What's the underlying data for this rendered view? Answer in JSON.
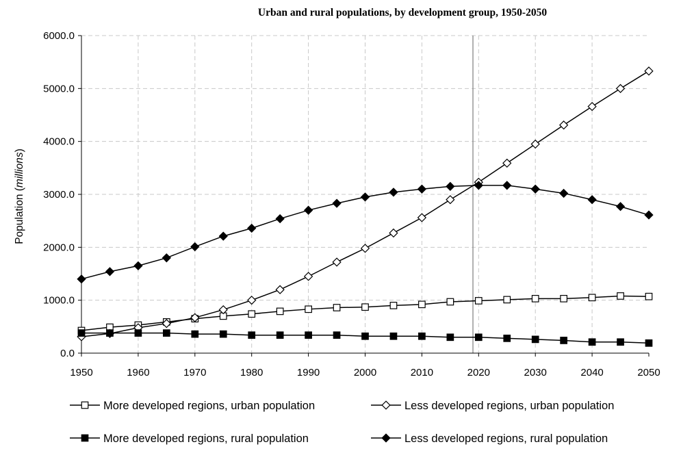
{
  "chart_data": {
    "type": "line",
    "title": "Urban and rural populations, by development group, 1950-2050",
    "ylabel_prefix": "Population (",
    "ylabel_unit": "millions",
    "ylabel_suffix": ")",
    "xlabel": "",
    "x": [
      1950,
      1955,
      1960,
      1965,
      1970,
      1975,
      1980,
      1985,
      1990,
      1995,
      2000,
      2005,
      2010,
      2015,
      2020,
      2025,
      2030,
      2035,
      2040,
      2045,
      2050
    ],
    "xticks": [
      "1950",
      "1960",
      "1970",
      "1980",
      "1990",
      "2000",
      "2010",
      "2020",
      "2030",
      "2040",
      "2050"
    ],
    "yticks": [
      "0.0",
      "1000.0",
      "2000.0",
      "3000.0",
      "4000.0",
      "5000.0",
      "6000.0"
    ],
    "xlim": [
      1950,
      2050
    ],
    "ylim": [
      0,
      6000
    ],
    "grid": true,
    "reference_line_x": 2019,
    "series": [
      {
        "name": "More developed regions, urban population",
        "marker": "open-square",
        "values": [
          427,
          490,
          530,
          590,
          650,
          700,
          740,
          790,
          830,
          860,
          870,
          900,
          920,
          970,
          990,
          1010,
          1030,
          1030,
          1050,
          1080,
          1070
        ]
      },
      {
        "name": "Less developed regions, urban population",
        "marker": "open-diamond",
        "values": [
          310,
          370,
          480,
          560,
          670,
          820,
          1000,
          1200,
          1450,
          1720,
          1980,
          2270,
          2560,
          2900,
          3230,
          3590,
          3950,
          4310,
          4660,
          5000,
          5330
        ]
      },
      {
        "name": "More developed regions, rural population",
        "marker": "filled-square",
        "values": [
          380,
          380,
          380,
          380,
          360,
          360,
          340,
          340,
          340,
          340,
          320,
          320,
          320,
          300,
          300,
          280,
          260,
          240,
          210,
          210,
          190
        ]
      },
      {
        "name": "Less developed regions, rural population",
        "marker": "filled-diamond",
        "values": [
          1400,
          1540,
          1650,
          1800,
          2010,
          2210,
          2360,
          2540,
          2700,
          2830,
          2950,
          3040,
          3100,
          3150,
          3170,
          3170,
          3100,
          3020,
          2900,
          2770,
          2610
        ]
      }
    ],
    "legend_position": "bottom"
  }
}
